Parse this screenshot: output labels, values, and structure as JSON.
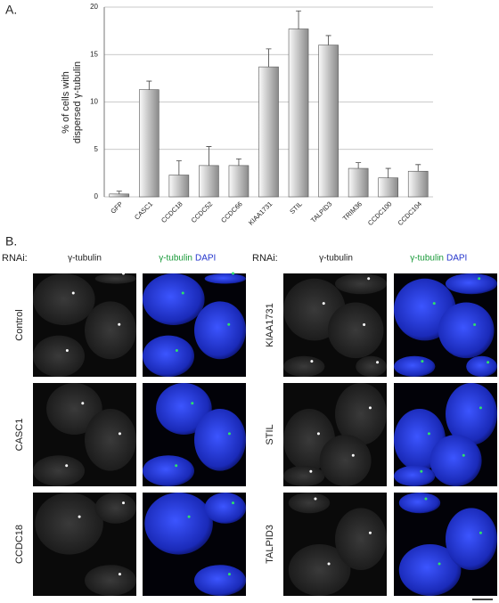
{
  "chart_data": {
    "type": "bar",
    "panel_label": "A.",
    "ylabel": [
      "% of cells with",
      "dispersed γ-tubulin"
    ],
    "categories": [
      "GFP",
      "CASC1",
      "CCDC18",
      "CCDC52",
      "CCDC66",
      "KIAA1731",
      "STIL",
      "TALPID3",
      "TRIM36",
      "CCDC100",
      "CCDC104"
    ],
    "values": [
      0.3,
      11.3,
      2.3,
      3.3,
      3.3,
      13.7,
      17.7,
      16.0,
      3.0,
      2.0,
      2.7
    ],
    "errors": [
      0.3,
      0.9,
      1.5,
      2.0,
      0.7,
      1.9,
      1.9,
      1.0,
      0.6,
      1.0,
      0.7
    ],
    "color": "#9a9a9a",
    "ylim": [
      0,
      20
    ],
    "yticks": [
      0,
      5,
      10,
      15,
      20
    ],
    "grid": true
  },
  "panel_b": {
    "label": "B.",
    "rnai_label": "RNAi:",
    "gamma_tubulin": "γ-tubulin",
    "dapi": "DAPI",
    "rows_left": [
      "Control",
      "CASC1",
      "CCDC18"
    ],
    "rows_right": [
      "KIAA1731",
      "STIL",
      "TALPID3"
    ]
  }
}
